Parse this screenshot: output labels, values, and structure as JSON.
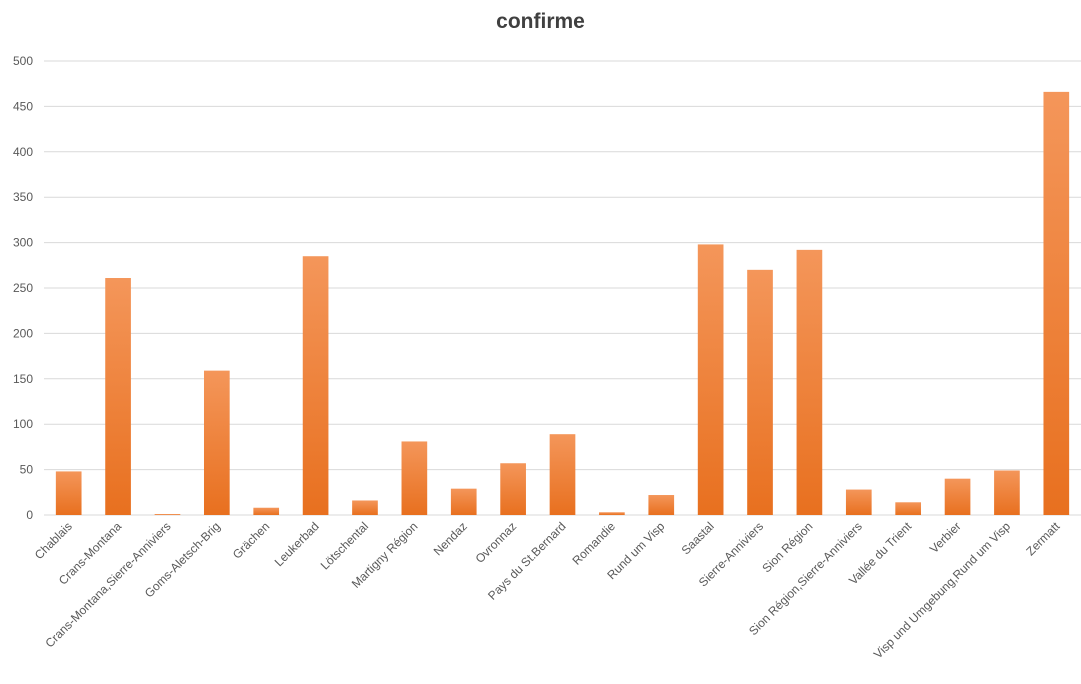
{
  "chart_data": {
    "type": "bar",
    "title": "confirme",
    "xlabel": "",
    "ylabel": "",
    "ylim": [
      0,
      500
    ],
    "yticks": [
      0,
      50,
      100,
      150,
      200,
      250,
      300,
      350,
      400,
      450,
      500
    ],
    "grid": true,
    "legend": "none",
    "bar_color_top": "#f4965a",
    "bar_color_bottom": "#e8701f",
    "categories": [
      "Chablais",
      "Crans-Montana",
      "Crans-Montana,Sierre-Anniviers",
      "Goms-Aletsch-Brig",
      "Grächen",
      "Leukerbad",
      "Lötschental",
      "Martigny Région",
      "Nendaz",
      "Ovronnaz",
      "Pays du St.Bernard",
      "Romandie",
      "Rund um Visp",
      "Saastal",
      "Sierre-Anniviers",
      "Sion Région",
      "Sion Région,Sierre-Anniviers",
      "Vallée du Trient",
      "Verbier",
      "Visp und Umgebung,Rund um Visp",
      "Zermatt"
    ],
    "values": [
      48,
      261,
      1,
      159,
      8,
      285,
      16,
      81,
      29,
      57,
      89,
      3,
      22,
      298,
      270,
      292,
      28,
      14,
      40,
      49,
      466
    ]
  }
}
